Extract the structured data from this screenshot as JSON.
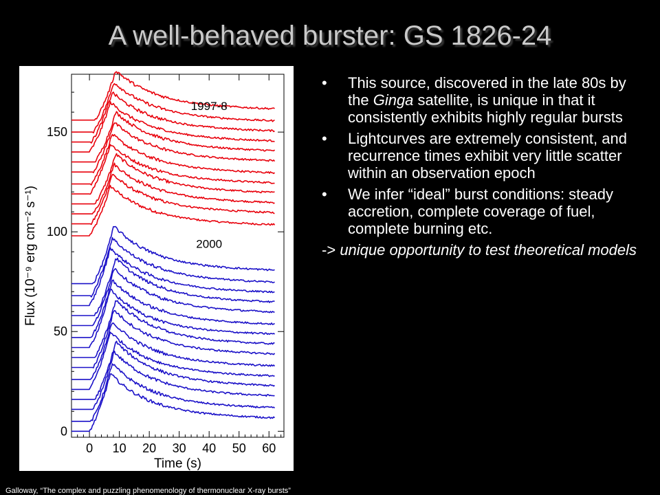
{
  "slide": {
    "title": "A well-behaved burster: GS 1826-24",
    "bullets": [
      {
        "parts": [
          {
            "text": "This source, discovered in the late 80s by the ",
            "italic": false
          },
          {
            "text": "Ginga",
            "italic": true
          },
          {
            "text": " satellite, is unique in that it consistently exhibits highly regular bursts",
            "italic": false
          }
        ]
      },
      {
        "parts": [
          {
            "text": "Lightcurves are extremely consistent, and recurrence times exhibit very little scatter within an observation epoch",
            "italic": false
          }
        ]
      },
      {
        "parts": [
          {
            "text": "We infer “ideal” burst conditions: steady accretion, complete coverage of fuel, complete burning etc.",
            "italic": false
          }
        ]
      }
    ],
    "bullet_glyph": "•",
    "conclusion_prefix": "->",
    "conclusion": "unique opportunity to test theoretical models",
    "footnote": "Galloway, “The complex and puzzling phenomenology of thermonuclear X-ray bursts”"
  },
  "chart_data": {
    "type": "line",
    "xlabel": "Time (s)",
    "ylabel": "Flux (10⁻⁹ erg cm⁻² s⁻¹)",
    "xticks": [
      0,
      10,
      20,
      30,
      40,
      50,
      60
    ],
    "yticks": [
      0,
      50,
      100,
      150
    ],
    "xlim": [
      -6,
      65
    ],
    "ylim": [
      -3,
      179
    ],
    "group_labels": [
      {
        "text": "1997-8",
        "x": 40,
        "y": 161
      },
      {
        "text": "2000",
        "x": 40,
        "y": 92
      }
    ],
    "groups": [
      {
        "epoch": "1997-8",
        "color": "#e8000b",
        "baselines": [
          98,
          104,
          109,
          114,
          119,
          124,
          130,
          135,
          140,
          145,
          150,
          156
        ],
        "peak_amplitude": 25
      },
      {
        "epoch": "2000",
        "color": "#1a10c8",
        "baselines": [
          0,
          5,
          11,
          16,
          21,
          26,
          32,
          37,
          42,
          47,
          53,
          58,
          63,
          68,
          74
        ],
        "peak_amplitude": 29
      }
    ]
  }
}
